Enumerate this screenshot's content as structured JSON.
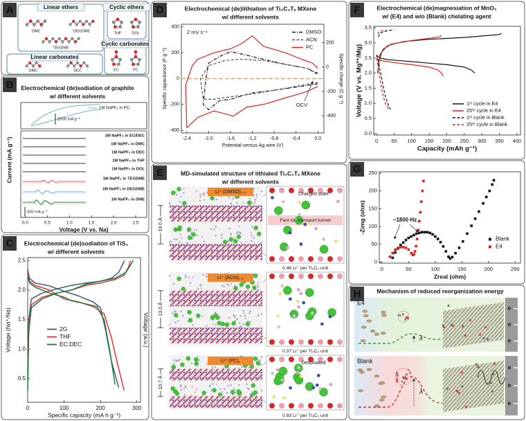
{
  "panel_labels": [
    "A",
    "B",
    "C",
    "D",
    "E",
    "F",
    "G",
    "H"
  ],
  "panel_a": {
    "groups": [
      {
        "title": "Linear ethers",
        "molecules": [
          "DME",
          "DEGDME",
          "TEGDME"
        ]
      },
      {
        "title": "Cyclic ethers",
        "molecules": [
          "THF",
          "DOL"
        ]
      },
      {
        "title": "Linear carbonates",
        "molecules": [
          "DMC",
          "DEC"
        ]
      },
      {
        "title": "Cyclic carbonates",
        "molecules": [
          "EC",
          "PC"
        ]
      }
    ]
  },
  "chart_data": [
    {
      "type": "line",
      "title": [
        "Electrochemical (de)sodiation of graphite",
        "w/ different solvents"
      ],
      "x_label": "Voltage (V vs. Na)",
      "y_label": "Current (mA g⁻¹)",
      "xlim": [
        -0.1,
        2.75
      ],
      "xticks": [
        {
          "value": 0,
          "label": "0.0"
        },
        0.5,
        {
          "value": 1,
          "label": "1.0"
        },
        1.5,
        {
          "value": 2,
          "label": "2.0"
        },
        2.5
      ],
      "top_legend": "1M NaPF₆ in PC",
      "top_color": "#6fb8b8",
      "top_scale": "2000 mA g⁻¹",
      "bottom_scale": "500 mA g⁻¹",
      "series": [
        {
          "name": "1M NaPF₆ in EC/DEC",
          "color": "#333333"
        },
        {
          "name": "1M NaPF₆ in DMC",
          "color": "#333333"
        },
        {
          "name": "1M NaPF₆ in DEC",
          "color": "#333333"
        },
        {
          "name": "1M NaPF₆ in THF",
          "color": "#333333"
        },
        {
          "name": "1M NaPF₆ in DOL",
          "color": "#333333"
        },
        {
          "name": "1M NaPF₆ in TEGDME",
          "color": "#e06060"
        },
        {
          "name": "1M NaPF₆ in DEGDME",
          "color": "#7ab8d8"
        },
        {
          "name": "1M NaPF₆ in DME",
          "color": "#3a8a3a"
        }
      ]
    },
    {
      "type": "line",
      "title": [
        "Electrochemical (de)sodiation of TiS₂",
        "w/ different solvents"
      ],
      "x_label": "Specific capacity (mA h g⁻¹)",
      "y_label": "Voltage (Na⁺/Na)",
      "y2_label": "Voltage (a.u.)",
      "xlim": [
        0,
        310
      ],
      "xticks": [
        0,
        100,
        200,
        300
      ],
      "ylim": [
        0.1,
        2.55
      ],
      "yticks": [
        0.5,
        {
          "value": 1,
          "label": "1.0"
        },
        1.5,
        {
          "value": 2,
          "label": "2.0"
        },
        2.5
      ],
      "legend": "lower-left",
      "series": [
        {
          "name": "2G",
          "color": "#3d5a78",
          "x": [
            0,
            5,
            20,
            60,
            100,
            140,
            180,
            200,
            215,
            230,
            250,
            null,
            0,
            3,
            10,
            40,
            80,
            120,
            160,
            200,
            230,
            250,
            262,
            266
          ],
          "values": [
            2.35,
            2.2,
            2.12,
            2.07,
            1.98,
            1.9,
            1.8,
            1.7,
            1.3,
            0.8,
            0.35,
            null,
            0.6,
            1.5,
            1.85,
            1.95,
            2.02,
            2.08,
            2.12,
            2.15,
            2.2,
            2.3,
            2.45,
            2.5
          ]
        },
        {
          "name": "THF",
          "color": "#e8303a",
          "x": [
            0,
            5,
            20,
            60,
            100,
            140,
            180,
            210,
            230,
            245,
            265,
            null,
            0,
            3,
            10,
            40,
            80,
            120,
            160,
            200,
            240,
            265,
            278,
            282
          ],
          "values": [
            2.3,
            2.15,
            2.08,
            2.0,
            1.85,
            1.8,
            1.72,
            1.6,
            1.2,
            0.8,
            0.3,
            null,
            0.5,
            1.4,
            1.75,
            1.88,
            1.95,
            2.0,
            2.08,
            2.12,
            2.18,
            2.25,
            2.4,
            2.5
          ]
        },
        {
          "name": "EC:DEC",
          "color": "#1a7a3a",
          "x": [
            0,
            5,
            20,
            60,
            100,
            120,
            150,
            190,
            210,
            225,
            240,
            null,
            0,
            3,
            10,
            40,
            80,
            120,
            160,
            200,
            240,
            270,
            285,
            290
          ],
          "values": [
            2.25,
            2.12,
            2.05,
            1.95,
            1.88,
            1.82,
            1.78,
            1.72,
            1.5,
            1.0,
            0.4,
            null,
            0.3,
            1.3,
            1.7,
            1.85,
            1.95,
            2.0,
            2.1,
            2.15,
            2.2,
            2.3,
            2.45,
            2.5
          ]
        }
      ]
    },
    {
      "type": "line",
      "title": [
        "Electrochemical (de)lithiation of Ti₃C₂Tₓ MXene",
        "w/ different solvents"
      ],
      "x_label": "Potential versus Ag wire (V)",
      "y_label": "Specific capacitance (F g⁻¹)",
      "y2_label": "Specific charge (C g⁻¹)",
      "xlim": [
        -2.5,
        0.11
      ],
      "xticks": [
        -2.4,
        {
          "value": -2,
          "label": "-2.0"
        },
        -1.6,
        -1.2,
        -0.8,
        -0.4,
        {
          "value": 0,
          "label": "0.0"
        }
      ],
      "ylim": [
        -420,
        420
      ],
      "yticks": [
        -400,
        -200,
        0,
        200,
        400
      ],
      "y2lim": [
        -540,
        350
      ],
      "y2ticks": [
        -400,
        -200,
        0,
        200
      ],
      "annotations": [
        "2 mV s⁻¹",
        "OCV"
      ],
      "reference_line": {
        "value": 0,
        "color": "#f0a040"
      },
      "legend": "upper-right",
      "series": [
        {
          "name": "DMSO",
          "color": "#111111",
          "dash": "dashdot",
          "x": [
            0,
            -0.3,
            -0.8,
            -1.2,
            -1.6,
            -1.8,
            -2.0,
            -2.1,
            -2.05,
            -2.0,
            -1.8,
            -1.6,
            -1.4,
            -1.0,
            -0.6,
            -0.2,
            0
          ],
          "values": [
            -40,
            -60,
            -90,
            -110,
            -160,
            -170,
            -240,
            -200,
            0,
            120,
            170,
            210,
            190,
            150,
            110,
            80,
            40
          ]
        },
        {
          "name": "ACN",
          "color": "#555555",
          "dash": "dashed",
          "x": [
            0,
            -0.4,
            -0.8,
            -1.2,
            -1.6,
            -1.9,
            -2.1,
            -2.15,
            -2.0,
            -1.7,
            -1.4,
            -1.0,
            -0.6,
            -0.2,
            0
          ],
          "values": [
            -30,
            -60,
            -90,
            -120,
            -140,
            -160,
            -160,
            0,
            100,
            140,
            150,
            140,
            110,
            80,
            30
          ]
        },
        {
          "name": "PC",
          "color": "#e02020",
          "x": [
            0,
            -0.2,
            -0.6,
            -1.0,
            -1.3,
            -1.55,
            -1.9,
            -2.2,
            -2.4,
            -2.42,
            -2.3,
            -2.2,
            -1.9,
            -1.6,
            -1.4,
            -1.2,
            -1.0,
            -0.6,
            -0.3,
            -0.1,
            0
          ],
          "values": [
            -60,
            -100,
            -150,
            -200,
            -220,
            -290,
            -250,
            -300,
            -380,
            -50,
            100,
            150,
            200,
            230,
            270,
            330,
            250,
            200,
            150,
            120,
            80
          ]
        }
      ]
    },
    {
      "type": "line",
      "title": [
        "Electrochemical (de)magnesiation of MnO₂",
        "w/ (E4) and w/o (Blank) chelating agent"
      ],
      "x_label": "Capacity (mAh g⁻¹)",
      "y_label": "Voltage (V vs. Mg²⁺/Mg)",
      "xlim": [
        -8,
        410
      ],
      "xticks": [
        0,
        50,
        100,
        150,
        200,
        250,
        300,
        350,
        400
      ],
      "ylim": [
        -0.05,
        3.55
      ],
      "yticks": [
        {
          "value": 0,
          "label": "0.0"
        },
        0.5,
        {
          "value": 1,
          "label": "1.0"
        },
        1.5,
        {
          "value": 2,
          "label": "2.0"
        },
        2.5,
        {
          "value": 3,
          "label": "3.0"
        },
        3.5
      ],
      "legend": "lower-right",
      "series": [
        {
          "name": "1ˢᵗ cycle in E4",
          "color": "#111111",
          "x": [
            0,
            3,
            10,
            30,
            60,
            100,
            150,
            200,
            250,
            270,
            280,
            null,
            3,
            10,
            20,
            40,
            80,
            150,
            250,
            320,
            350,
            356
          ],
          "values": [
            2.6,
            2.55,
            2.5,
            2.45,
            2.42,
            2.38,
            2.33,
            2.28,
            2.2,
            2.1,
            2.0,
            null,
            2.0,
            2.6,
            2.8,
            2.95,
            3.05,
            3.12,
            3.18,
            3.25,
            3.28,
            3.32
          ]
        },
        {
          "name": "25ᵗʰ cycle in E4",
          "color": "#e02020",
          "x": [
            0,
            5,
            20,
            50,
            100,
            150,
            175,
            185,
            190,
            null,
            5,
            15,
            30,
            60,
            100,
            150,
            180,
            185
          ],
          "values": [
            2.5,
            2.45,
            2.4,
            2.35,
            2.28,
            2.2,
            2.1,
            2.0,
            1.9,
            null,
            2.3,
            2.7,
            2.9,
            3.0,
            3.08,
            3.15,
            3.2,
            3.25
          ]
        },
        {
          "name": "1ˢᵗ cycle in Blank",
          "color": "#111111",
          "dash": "dashed",
          "x": [
            0,
            5,
            10,
            15,
            20,
            25,
            30,
            35,
            40,
            null,
            5,
            10,
            20,
            30,
            40,
            50
          ],
          "values": [
            2.6,
            2.4,
            2.1,
            1.8,
            1.5,
            1.25,
            1.05,
            0.9,
            0.8,
            null,
            3.2,
            3.32,
            3.37,
            3.4,
            3.42,
            3.43
          ]
        },
        {
          "name": "25ᵗʰ cycle in Blank",
          "color": "#e02020",
          "dash": "dashed",
          "x": [
            0,
            5,
            10,
            15,
            20,
            25,
            30,
            35,
            null,
            3,
            8,
            15,
            22,
            28
          ],
          "values": [
            2.5,
            2.2,
            1.8,
            1.45,
            1.2,
            1.0,
            0.9,
            0.8,
            null,
            3.3,
            3.38,
            3.4,
            3.42,
            3.42
          ]
        }
      ]
    },
    {
      "type": "scatter",
      "x_label": "Zreal (ohm)",
      "y_label": "-Zimg (ohm)",
      "xlim": [
        -5,
        260
      ],
      "xticks": [
        0,
        50,
        100,
        150,
        200,
        250
      ],
      "ylim": [
        -3,
        254
      ],
      "yticks": [
        0,
        50,
        100,
        150,
        200,
        250
      ],
      "annotations": [
        "~1800 Hz"
      ],
      "legend": "lower-right",
      "series": [
        {
          "name": "Blank",
          "color": "#111111",
          "marker": "square",
          "x": [
            20,
            25,
            30,
            35,
            40,
            45,
            50,
            55,
            60,
            65,
            70,
            75,
            80,
            85,
            90,
            95,
            100,
            105,
            110,
            115,
            120,
            125,
            128,
            132,
            138,
            145,
            152,
            160,
            168,
            175,
            182,
            190,
            196,
            202,
            207,
            210
          ],
          "values": [
            12,
            27,
            38,
            48,
            55,
            62,
            68,
            72,
            76,
            80,
            82,
            84,
            84,
            84,
            82,
            78,
            72,
            65,
            56,
            44,
            30,
            15,
            10,
            14,
            25,
            40,
            58,
            80,
            102,
            122,
            142,
            165,
            183,
            200,
            218,
            230
          ]
        },
        {
          "name": "E4",
          "color": "#e02020",
          "marker": "square",
          "x": [
            15,
            20,
            25,
            30,
            35,
            40,
            45,
            50,
            55,
            58,
            60,
            62,
            64,
            66,
            68,
            70,
            72,
            74,
            76,
            78
          ],
          "values": [
            15,
            25,
            35,
            40,
            42,
            42,
            40,
            35,
            25,
            20,
            22,
            30,
            45,
            65,
            90,
            115,
            140,
            170,
            200,
            228
          ]
        }
      ]
    }
  ],
  "panel_e": {
    "title": [
      "MD-simulated structure of lithiated Ti₃C₂Tₓ MXene",
      "w/ different solvents"
    ],
    "rows": [
      {
        "species": "Li⁺ (DMSO)₁.₅",
        "spacing": "19.0 Å",
        "state": "Charged state",
        "tunnel": "Fast ion transport tunnel",
        "loading": "0.46 Li⁺ per Ti₃C₂ unit"
      },
      {
        "species": "Li⁺ (ACN)₀.₅",
        "spacing": "13.0 Å",
        "loading": "0.37 Li⁺ per Ti₃C₂ unit"
      },
      {
        "species": "Li⁺ (PC)₁",
        "spacing": "10.7 Å",
        "state": "Desolvated",
        "loading": "0.93 Li⁺ per Ti₃C₂ unit"
      }
    ]
  },
  "panel_h": {
    "title": "Mechanism of reduced reorganization energy",
    "rows": [
      {
        "label": "E4",
        "symbol": "λ"
      },
      {
        "label": "Blank",
        "symbol": "λ"
      }
    ],
    "electron": "e"
  }
}
